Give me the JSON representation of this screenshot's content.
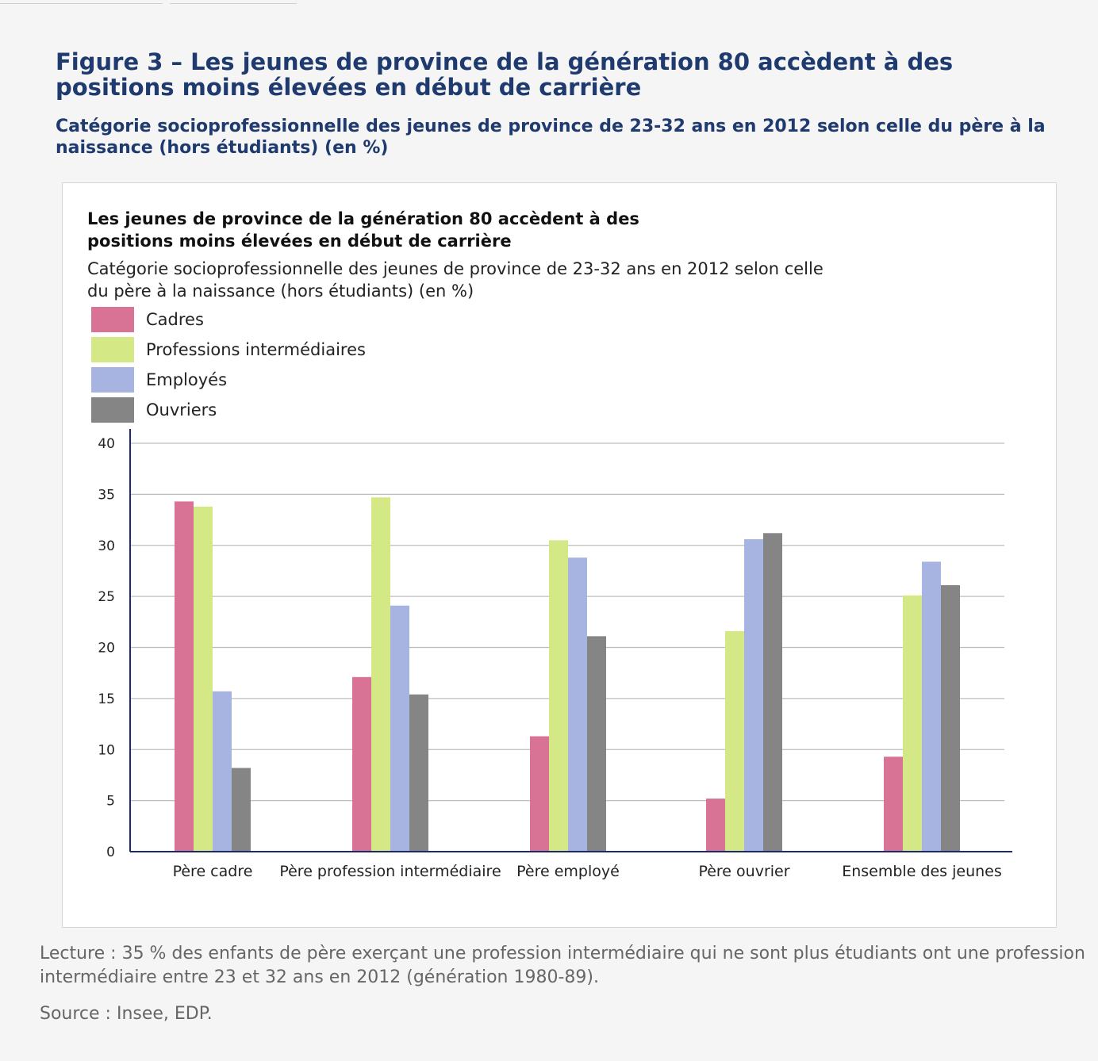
{
  "figure": {
    "title": "Figure 3 – Les jeunes de province de la génération 80 accèdent à des positions moins élevées en début de carrière",
    "subtitle": "Catégorie socioprofessionnelle des jeunes de province de 23-32 ans en 2012 selon celle du père à la naissance (hors étudiants) (en %)"
  },
  "legend": [
    {
      "label": "Cadres",
      "color": "#d97396"
    },
    {
      "label": "Professions intermédiaires",
      "color": "#d4e985"
    },
    {
      "label": "Employés",
      "color": "#a7b3e0"
    },
    {
      "label": "Ouvriers",
      "color": "#858585"
    }
  ],
  "chart_data": {
    "type": "bar",
    "title": "Les jeunes de province de la génération 80 accèdent à des positions moins élevées en début de carrière",
    "subtitle": "Catégorie socioprofessionnelle des jeunes de province de 23-32 ans en 2012 selon celle du père à la naissance (hors étudiants) (en %)",
    "categories": [
      "Père cadre",
      "Père profession intermédiaire",
      "Père employé",
      "Père ouvrier",
      "Ensemble des jeunes"
    ],
    "series": [
      {
        "name": "Cadres",
        "color": "#d97396",
        "values": [
          34.3,
          17.1,
          11.3,
          5.2,
          9.3
        ]
      },
      {
        "name": "Professions intermédiaires",
        "color": "#d4e985",
        "values": [
          33.8,
          34.7,
          30.5,
          21.6,
          25.1
        ]
      },
      {
        "name": "Employés",
        "color": "#a7b3e0",
        "values": [
          15.7,
          24.1,
          28.8,
          30.6,
          28.4
        ]
      },
      {
        "name": "Ouvriers",
        "color": "#858585",
        "values": [
          8.2,
          15.4,
          21.1,
          31.2,
          26.1
        ]
      }
    ],
    "ylim": [
      0,
      40
    ],
    "yticks": [
      0,
      5,
      10,
      15,
      20,
      25,
      30,
      35,
      40
    ],
    "grid": true,
    "legend_position": "top-left"
  },
  "note": {
    "lecture": "Lecture : 35 % des enfants de père exerçant une profession intermédiaire qui ne sont plus étudiants ont une profession intermédiaire entre 23 et 32 ans en 2012 (génération 1980-89).",
    "source": "Source : Insee, EDP."
  }
}
